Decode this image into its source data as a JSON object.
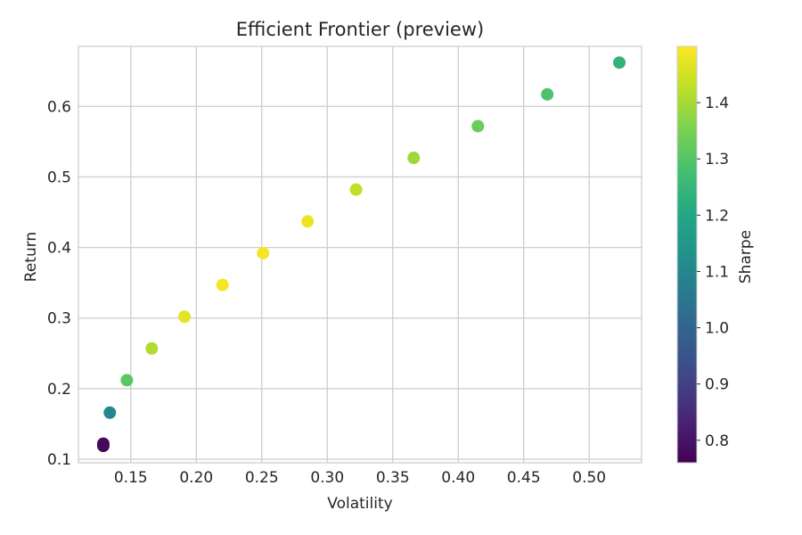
{
  "chart_data": {
    "type": "scatter",
    "title": "Efficient Frontier (preview)",
    "xlabel": "Volatility",
    "ylabel": "Return",
    "colorbar_label": "Sharpe",
    "xlim": [
      0.11,
      0.54
    ],
    "ylim": [
      0.095,
      0.685
    ],
    "xticks": [
      0.15,
      0.2,
      0.25,
      0.3,
      0.35,
      0.4,
      0.45,
      0.5
    ],
    "xtick_labels": [
      "0.15",
      "0.20",
      "0.25",
      "0.30",
      "0.35",
      "0.40",
      "0.45",
      "0.50"
    ],
    "yticks": [
      0.1,
      0.2,
      0.3,
      0.4,
      0.5,
      0.6
    ],
    "ytick_labels": [
      "0.1",
      "0.2",
      "0.3",
      "0.4",
      "0.5",
      "0.6"
    ],
    "clim": [
      0.76,
      1.5
    ],
    "cticks": [
      0.8,
      0.9,
      1.0,
      1.1,
      1.2,
      1.3,
      1.4
    ],
    "ctick_labels": [
      "0.8",
      "0.9",
      "1.0",
      "1.1",
      "1.2",
      "1.3",
      "1.4"
    ],
    "colormap": "viridis",
    "grid": true,
    "points": [
      {
        "x": 0.129,
        "y": 0.119,
        "sharpe": 0.77
      },
      {
        "x": 0.129,
        "y": 0.122,
        "sharpe": 0.78
      },
      {
        "x": 0.134,
        "y": 0.166,
        "sharpe": 1.1
      },
      {
        "x": 0.147,
        "y": 0.212,
        "sharpe": 1.31
      },
      {
        "x": 0.166,
        "y": 0.257,
        "sharpe": 1.41
      },
      {
        "x": 0.191,
        "y": 0.302,
        "sharpe": 1.47
      },
      {
        "x": 0.22,
        "y": 0.347,
        "sharpe": 1.49
      },
      {
        "x": 0.251,
        "y": 0.392,
        "sharpe": 1.49
      },
      {
        "x": 0.285,
        "y": 0.437,
        "sharpe": 1.48
      },
      {
        "x": 0.322,
        "y": 0.482,
        "sharpe": 1.43
      },
      {
        "x": 0.366,
        "y": 0.527,
        "sharpe": 1.39
      },
      {
        "x": 0.415,
        "y": 0.572,
        "sharpe": 1.33
      },
      {
        "x": 0.468,
        "y": 0.617,
        "sharpe": 1.29
      },
      {
        "x": 0.523,
        "y": 0.662,
        "sharpe": 1.24
      }
    ]
  }
}
